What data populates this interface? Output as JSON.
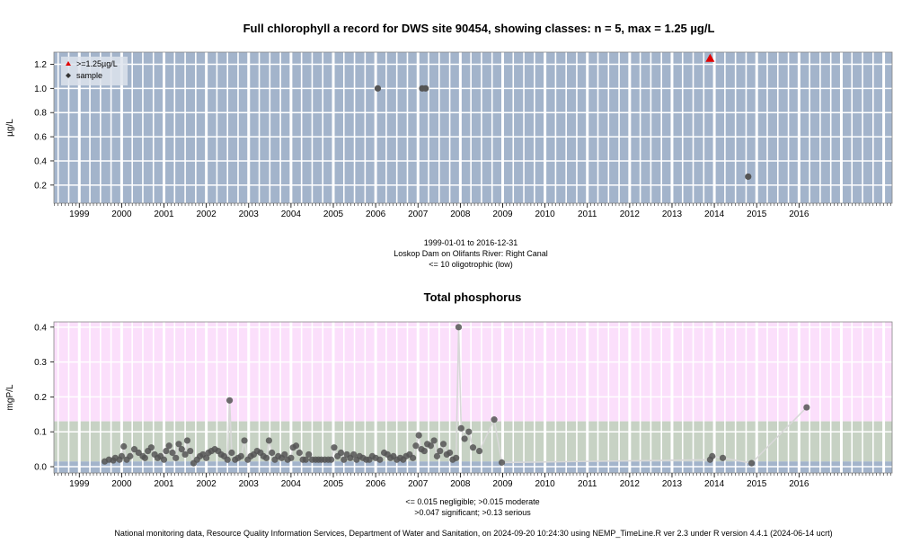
{
  "footer": "National monitoring data, Resource Quality Information Services, Department of Water and Sanitation, on 2024-09-20 10:24:30 using NEMP_TimeLine.R ver 2.3 under R version 4.4.1 (2024-06-14 ucrt)",
  "colors": {
    "panel_bg": "#a3b4cb",
    "pink_band": "#fbdffb",
    "green_band": "#c7d2c4",
    "blue_band": "#a3b4cb",
    "point": "#555555",
    "highlight": "#e00000",
    "grid": "#ffffff",
    "line": "#d8d8d8"
  },
  "chart_data": [
    {
      "type": "scatter",
      "title": "Full chlorophyll a record for DWS site 90454, showing classes: n = 5, max = 1.25 µg/L",
      "ylabel": "µg/L",
      "ylim": [
        0.05,
        1.3
      ],
      "yticks": [
        "0.2",
        "0.4",
        "0.6",
        "0.8",
        "1.0",
        "1.2"
      ],
      "xlim": [
        1998.4,
        2018.2
      ],
      "xticks": [
        "1999",
        "2000",
        "2001",
        "2002",
        "2003",
        "2004",
        "2005",
        "2006",
        "2007",
        "2008",
        "2009",
        "2010",
        "2011",
        "2012",
        "2013",
        "2014",
        "2015",
        "2016"
      ],
      "grid": true,
      "legend": {
        "placement": "top-left",
        "items": [
          {
            "label": ">=1.25µg/L",
            "marker": "triangle",
            "color": "#e00000"
          },
          {
            "label": "sample",
            "marker": "circle",
            "color": "#333333"
          }
        ]
      },
      "points": [
        {
          "x": 2006.05,
          "y": 1.0
        },
        {
          "x": 2007.1,
          "y": 1.0
        },
        {
          "x": 2007.18,
          "y": 1.0
        },
        {
          "x": 2014.8,
          "y": 0.27
        }
      ],
      "highlight_points": [
        {
          "x": 2013.9,
          "y": 1.25
        }
      ],
      "subtitle_lines": [
        "1999-01-01 to 2016-12-31",
        "Loskop Dam on Olifants River: Right Canal",
        "<= 10 oligotrophic (low)"
      ]
    },
    {
      "type": "line",
      "title": "Total phosphorus",
      "ylabel": "mgP/L",
      "ylim": [
        -0.018,
        0.415
      ],
      "yticks": [
        "0.0",
        "0.1",
        "0.2",
        "0.3",
        "0.4"
      ],
      "xlim": [
        1998.4,
        2018.2
      ],
      "xticks": [
        "1999",
        "2000",
        "2001",
        "2002",
        "2003",
        "2004",
        "2005",
        "2006",
        "2007",
        "2008",
        "2009",
        "2010",
        "2011",
        "2012",
        "2013",
        "2014",
        "2015",
        "2016"
      ],
      "grid": true,
      "bands": [
        {
          "from": 0.13,
          "to": 0.415,
          "color": "#fbdffb"
        },
        {
          "from": 0.015,
          "to": 0.13,
          "color": "#c7d2c4"
        },
        {
          "from": -0.018,
          "to": 0.015,
          "color": "#a3b4cb"
        }
      ],
      "points": [
        {
          "x": 1999.6,
          "y": 0.015
        },
        {
          "x": 1999.7,
          "y": 0.02
        },
        {
          "x": 1999.8,
          "y": 0.018
        },
        {
          "x": 1999.85,
          "y": 0.025
        },
        {
          "x": 1999.95,
          "y": 0.02
        },
        {
          "x": 2000.0,
          "y": 0.03
        },
        {
          "x": 2000.05,
          "y": 0.058
        },
        {
          "x": 2000.12,
          "y": 0.02
        },
        {
          "x": 2000.2,
          "y": 0.03
        },
        {
          "x": 2000.3,
          "y": 0.05
        },
        {
          "x": 2000.4,
          "y": 0.04
        },
        {
          "x": 2000.5,
          "y": 0.03
        },
        {
          "x": 2000.55,
          "y": 0.025
        },
        {
          "x": 2000.62,
          "y": 0.045
        },
        {
          "x": 2000.7,
          "y": 0.055
        },
        {
          "x": 2000.78,
          "y": 0.035
        },
        {
          "x": 2000.85,
          "y": 0.025
        },
        {
          "x": 2000.92,
          "y": 0.03
        },
        {
          "x": 2001.0,
          "y": 0.02
        },
        {
          "x": 2001.05,
          "y": 0.045
        },
        {
          "x": 2001.12,
          "y": 0.06
        },
        {
          "x": 2001.2,
          "y": 0.04
        },
        {
          "x": 2001.28,
          "y": 0.025
        },
        {
          "x": 2001.35,
          "y": 0.065
        },
        {
          "x": 2001.42,
          "y": 0.05
        },
        {
          "x": 2001.5,
          "y": 0.035
        },
        {
          "x": 2001.55,
          "y": 0.075
        },
        {
          "x": 2001.62,
          "y": 0.045
        },
        {
          "x": 2001.7,
          "y": 0.01
        },
        {
          "x": 2001.78,
          "y": 0.02
        },
        {
          "x": 2001.85,
          "y": 0.03
        },
        {
          "x": 2001.92,
          "y": 0.035
        },
        {
          "x": 2002.0,
          "y": 0.025
        },
        {
          "x": 2002.05,
          "y": 0.04
        },
        {
          "x": 2002.12,
          "y": 0.045
        },
        {
          "x": 2002.2,
          "y": 0.05
        },
        {
          "x": 2002.28,
          "y": 0.045
        },
        {
          "x": 2002.35,
          "y": 0.035
        },
        {
          "x": 2002.42,
          "y": 0.03
        },
        {
          "x": 2002.5,
          "y": 0.02
        },
        {
          "x": 2002.55,
          "y": 0.19
        },
        {
          "x": 2002.6,
          "y": 0.04
        },
        {
          "x": 2002.68,
          "y": 0.02
        },
        {
          "x": 2002.75,
          "y": 0.025
        },
        {
          "x": 2002.82,
          "y": 0.03
        },
        {
          "x": 2002.9,
          "y": 0.075
        },
        {
          "x": 2002.98,
          "y": 0.02
        },
        {
          "x": 2003.05,
          "y": 0.03
        },
        {
          "x": 2003.12,
          "y": 0.035
        },
        {
          "x": 2003.2,
          "y": 0.045
        },
        {
          "x": 2003.28,
          "y": 0.04
        },
        {
          "x": 2003.35,
          "y": 0.03
        },
        {
          "x": 2003.42,
          "y": 0.025
        },
        {
          "x": 2003.48,
          "y": 0.075
        },
        {
          "x": 2003.55,
          "y": 0.04
        },
        {
          "x": 2003.62,
          "y": 0.02
        },
        {
          "x": 2003.7,
          "y": 0.03
        },
        {
          "x": 2003.78,
          "y": 0.025
        },
        {
          "x": 2003.85,
          "y": 0.035
        },
        {
          "x": 2003.92,
          "y": 0.02
        },
        {
          "x": 2004.0,
          "y": 0.025
        },
        {
          "x": 2004.05,
          "y": 0.055
        },
        {
          "x": 2004.12,
          "y": 0.06
        },
        {
          "x": 2004.2,
          "y": 0.04
        },
        {
          "x": 2004.28,
          "y": 0.02
        },
        {
          "x": 2004.35,
          "y": 0.02
        },
        {
          "x": 2004.42,
          "y": 0.035
        },
        {
          "x": 2004.5,
          "y": 0.02
        },
        {
          "x": 2004.58,
          "y": 0.02
        },
        {
          "x": 2004.65,
          "y": 0.02
        },
        {
          "x": 2004.72,
          "y": 0.02
        },
        {
          "x": 2004.8,
          "y": 0.02
        },
        {
          "x": 2004.88,
          "y": 0.02
        },
        {
          "x": 2004.95,
          "y": 0.02
        },
        {
          "x": 2005.02,
          "y": 0.055
        },
        {
          "x": 2005.1,
          "y": 0.03
        },
        {
          "x": 2005.18,
          "y": 0.04
        },
        {
          "x": 2005.25,
          "y": 0.02
        },
        {
          "x": 2005.32,
          "y": 0.035
        },
        {
          "x": 2005.4,
          "y": 0.025
        },
        {
          "x": 2005.48,
          "y": 0.035
        },
        {
          "x": 2005.55,
          "y": 0.02
        },
        {
          "x": 2005.62,
          "y": 0.03
        },
        {
          "x": 2005.7,
          "y": 0.025
        },
        {
          "x": 2005.78,
          "y": 0.02
        },
        {
          "x": 2005.85,
          "y": 0.02
        },
        {
          "x": 2005.92,
          "y": 0.03
        },
        {
          "x": 2006.0,
          "y": 0.025
        },
        {
          "x": 2006.1,
          "y": 0.02
        },
        {
          "x": 2006.2,
          "y": 0.04
        },
        {
          "x": 2006.28,
          "y": 0.035
        },
        {
          "x": 2006.35,
          "y": 0.025
        },
        {
          "x": 2006.42,
          "y": 0.03
        },
        {
          "x": 2006.5,
          "y": 0.02
        },
        {
          "x": 2006.58,
          "y": 0.025
        },
        {
          "x": 2006.65,
          "y": 0.02
        },
        {
          "x": 2006.72,
          "y": 0.03
        },
        {
          "x": 2006.8,
          "y": 0.035
        },
        {
          "x": 2006.88,
          "y": 0.025
        },
        {
          "x": 2006.95,
          "y": 0.06
        },
        {
          "x": 2007.02,
          "y": 0.09
        },
        {
          "x": 2007.08,
          "y": 0.05
        },
        {
          "x": 2007.15,
          "y": 0.045
        },
        {
          "x": 2007.22,
          "y": 0.065
        },
        {
          "x": 2007.3,
          "y": 0.06
        },
        {
          "x": 2007.38,
          "y": 0.075
        },
        {
          "x": 2007.45,
          "y": 0.03
        },
        {
          "x": 2007.52,
          "y": 0.045
        },
        {
          "x": 2007.6,
          "y": 0.065
        },
        {
          "x": 2007.68,
          "y": 0.035
        },
        {
          "x": 2007.75,
          "y": 0.04
        },
        {
          "x": 2007.82,
          "y": 0.02
        },
        {
          "x": 2007.9,
          "y": 0.025
        },
        {
          "x": 2007.96,
          "y": 0.4
        },
        {
          "x": 2008.02,
          "y": 0.11
        },
        {
          "x": 2008.1,
          "y": 0.08
        },
        {
          "x": 2008.2,
          "y": 0.1
        },
        {
          "x": 2008.3,
          "y": 0.055
        },
        {
          "x": 2008.45,
          "y": 0.045
        },
        {
          "x": 2008.8,
          "y": 0.135
        },
        {
          "x": 2008.98,
          "y": 0.012
        },
        {
          "x": 2013.9,
          "y": 0.02
        },
        {
          "x": 2013.95,
          "y": 0.03
        },
        {
          "x": 2014.2,
          "y": 0.025
        },
        {
          "x": 2014.88,
          "y": 0.01
        },
        {
          "x": 2016.18,
          "y": 0.17
        }
      ],
      "subtitle_lines": [
        "<= 0.015 negligible; >0.015 moderate",
        ">0.047 significant; >0.13 serious"
      ]
    }
  ]
}
